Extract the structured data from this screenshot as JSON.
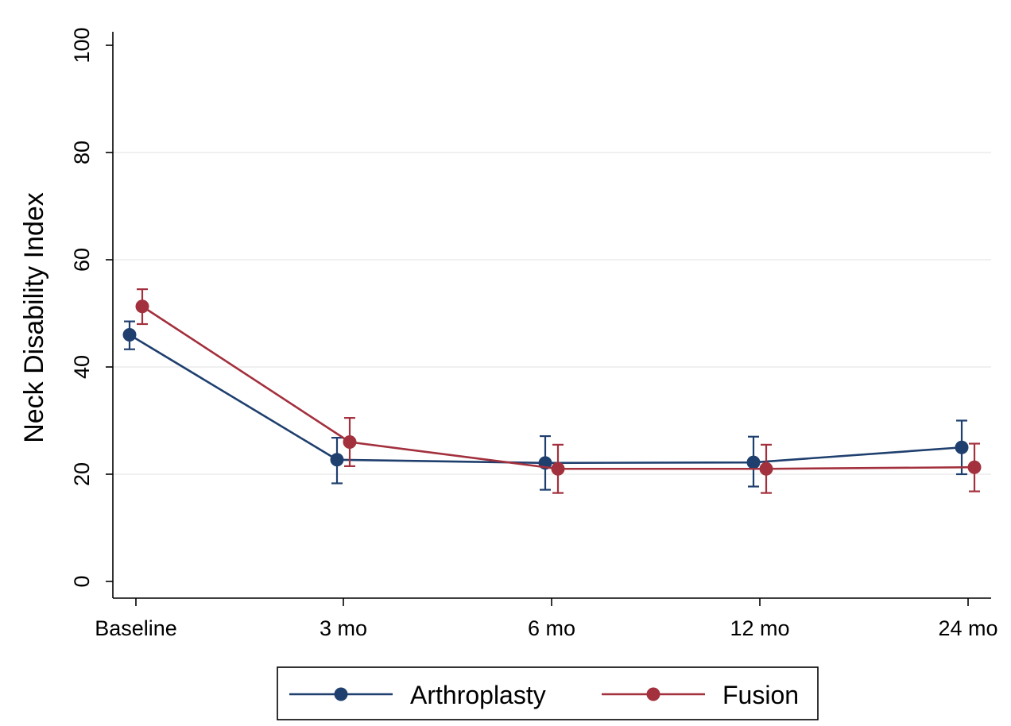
{
  "chart_data": {
    "type": "line",
    "title": "",
    "xlabel": "",
    "ylabel": "Neck Disability Index",
    "categories": [
      "Baseline",
      "3 mo",
      "6 mo",
      "12 mo",
      "24 mo"
    ],
    "ylim": [
      0,
      100
    ],
    "yticks": [
      0,
      20,
      40,
      60,
      80,
      100
    ],
    "grid": true,
    "error_bars": true,
    "legend_position": "bottom",
    "series": [
      {
        "name": "Arthroplasty",
        "color": "#1f3f6e",
        "values": [
          46,
          22.7,
          22.1,
          22.2,
          25
        ],
        "lower": [
          43.3,
          18.3,
          17.1,
          17.7,
          20
        ],
        "upper": [
          48.5,
          26.8,
          27.1,
          27,
          30
        ]
      },
      {
        "name": "Fusion",
        "color": "#a3303d",
        "values": [
          51.3,
          26,
          21,
          21,
          21.3
        ],
        "lower": [
          48,
          21.5,
          16.5,
          16.5,
          16.8
        ],
        "upper": [
          54.5,
          30.5,
          25.5,
          25.5,
          25.7
        ]
      }
    ]
  }
}
